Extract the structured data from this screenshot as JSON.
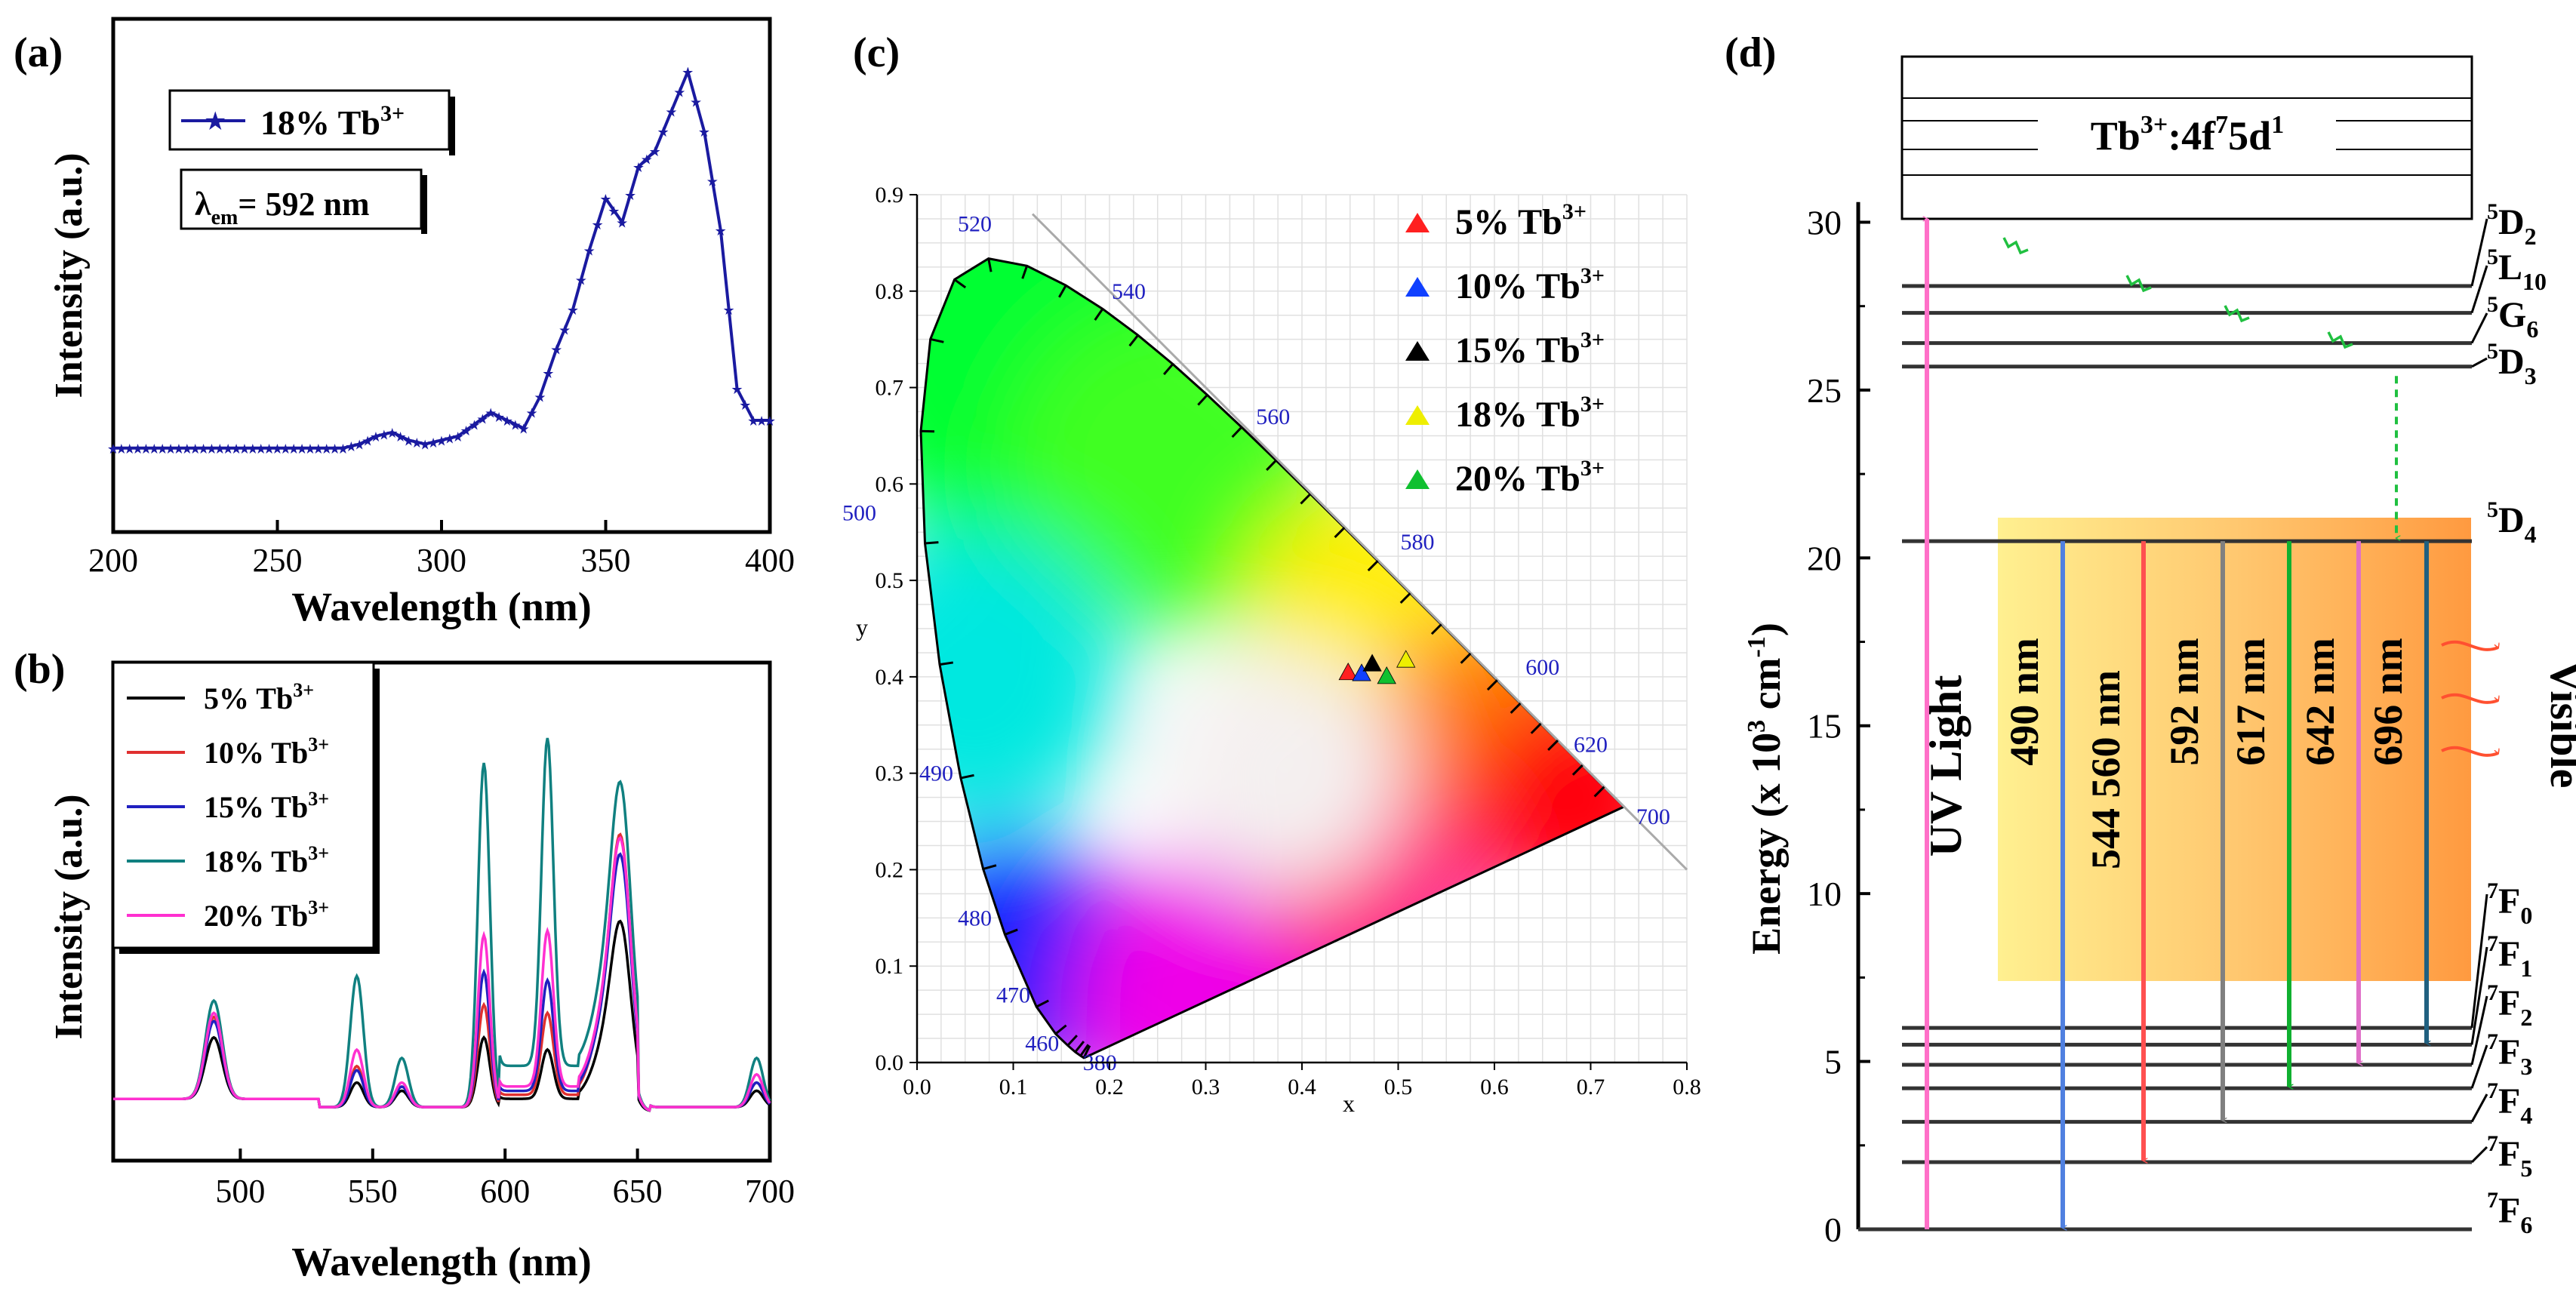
{
  "panel_labels": {
    "a": "(a)",
    "b": "(b)",
    "c": "(c)",
    "d": "(d)"
  },
  "colors": {
    "excitation": "#1a1aa0",
    "s5": "#000000",
    "s10": "#e03030",
    "s15": "#2020c0",
    "s18": "#108080",
    "s20": "#ff30d0",
    "cie_blue_label": "#2020c0",
    "arrow_uv": "#ff70c8",
    "arrow_490": "#5080e0",
    "arrow_544": "#ff5050",
    "arrow_592": "#808080",
    "arrow_617": "#10b030",
    "arrow_642": "#e070c8",
    "arrow_696": "#206080",
    "arrow_nr": "#20c040"
  },
  "chart_data": [
    {
      "id": "a",
      "type": "line",
      "title": "",
      "xlabel": "Wavelength (nm)",
      "ylabel": "Intensity (a.u.)",
      "xlim": [
        200,
        400
      ],
      "xticks": [
        "200",
        "250",
        "300",
        "350",
        "400"
      ],
      "legend": "18% Tb3+",
      "legend_parts": {
        "main": "18% Tb",
        "sup": "3+"
      },
      "annotation": {
        "lambda": "λ",
        "sub": "em",
        "rest": "= 592 nm"
      },
      "series": [
        {
          "name": "18% Tb3+",
          "x": [
            200,
            270,
            275,
            280,
            285,
            290,
            295,
            300,
            305,
            310,
            315,
            320,
            325,
            330,
            335,
            340,
            345,
            350,
            355,
            360,
            365,
            370,
            375,
            380,
            385,
            390,
            395,
            400
          ],
          "y": [
            0.05,
            0.05,
            0.06,
            0.08,
            0.09,
            0.07,
            0.06,
            0.07,
            0.08,
            0.11,
            0.14,
            0.12,
            0.1,
            0.18,
            0.3,
            0.4,
            0.55,
            0.68,
            0.62,
            0.76,
            0.8,
            0.9,
            1.0,
            0.85,
            0.6,
            0.2,
            0.12,
            0.12
          ]
        }
      ]
    },
    {
      "id": "b",
      "type": "line",
      "title": "",
      "xlabel": "Wavelength (nm)",
      "ylabel": "Intensity (a.u.)",
      "xlim": [
        452,
        700
      ],
      "xticks": [
        "500",
        "550",
        "600",
        "650",
        "700"
      ],
      "legend_parts": [
        {
          "main": "5% Tb",
          "sup": "3+"
        },
        {
          "main": "10% Tb",
          "sup": "3+"
        },
        {
          "main": "15% Tb",
          "sup": "3+"
        },
        {
          "main": "18% Tb",
          "sup": "3+"
        },
        {
          "main": "20% Tb",
          "sup": "3+"
        }
      ],
      "series": [
        {
          "name": "5% Tb3+",
          "peaks": [
            0.15,
            0.06,
            0.04,
            0.17,
            0.12,
            0.3,
            0.04
          ]
        },
        {
          "name": "10% Tb3+",
          "peaks": [
            0.2,
            0.1,
            0.05,
            0.25,
            0.2,
            0.44,
            0.06
          ]
        },
        {
          "name": "15% Tb3+",
          "peaks": [
            0.19,
            0.09,
            0.05,
            0.33,
            0.27,
            0.4,
            0.06
          ]
        },
        {
          "name": "18% Tb3+",
          "peaks": [
            0.24,
            0.32,
            0.12,
            0.84,
            0.8,
            0.48,
            0.12
          ]
        },
        {
          "name": "20% Tb3+",
          "peaks": [
            0.21,
            0.14,
            0.06,
            0.42,
            0.38,
            0.42,
            0.08
          ]
        }
      ],
      "peak_positions": [
        490,
        544,
        561,
        592,
        616,
        644,
        695
      ]
    },
    {
      "id": "c",
      "type": "scatter",
      "title": "",
      "xlabel": "x",
      "ylabel": "y",
      "xlim": [
        0,
        0.8
      ],
      "ylim": [
        0,
        0.9
      ],
      "xticks": [
        "0.0",
        "0.1",
        "0.2",
        "0.3",
        "0.4",
        "0.5",
        "0.6",
        "0.7",
        "0.8"
      ],
      "yticks": [
        "0.0",
        "0.1",
        "0.2",
        "0.3",
        "0.4",
        "0.5",
        "0.6",
        "0.7",
        "0.8",
        "0.9"
      ],
      "locus_labels": [
        "380",
        "460",
        "470",
        "480",
        "490",
        "500",
        "520",
        "540",
        "560",
        "580",
        "600",
        "620",
        "700"
      ],
      "legend_parts": [
        {
          "main": "5%   Tb",
          "sup": "3+"
        },
        {
          "main": "10% Tb",
          "sup": "3+"
        },
        {
          "main": "15% Tb",
          "sup": "3+"
        },
        {
          "main": "18% Tb",
          "sup": "3+"
        },
        {
          "main": "20% Tb",
          "sup": "3+"
        }
      ],
      "points": [
        {
          "name": "5% Tb3+",
          "x": 0.448,
          "y": 0.404
        },
        {
          "name": "10% Tb3+",
          "x": 0.462,
          "y": 0.403
        },
        {
          "name": "15% Tb3+",
          "x": 0.473,
          "y": 0.413
        },
        {
          "name": "18% Tb3+",
          "x": 0.508,
          "y": 0.417
        },
        {
          "name": "20% Tb3+",
          "x": 0.488,
          "y": 0.4
        }
      ]
    },
    {
      "id": "d",
      "type": "diagram",
      "title": "",
      "ylabel_parts": {
        "pre": "Energy (x 10",
        "sup": "3",
        "mid": " cm",
        "sup2": "-1",
        "post": ")"
      },
      "ylim": [
        0,
        31
      ],
      "yticks": [
        "0",
        "5",
        "10",
        "15",
        "20",
        "25",
        "30"
      ],
      "box_label": {
        "pre": "Tb",
        "sup": "3+",
        "post": ":4f",
        "sup2": "7",
        "post2": "5d",
        "sup3": "1"
      },
      "upper_levels": [
        {
          "name": "5D2",
          "pre": "5",
          "main": "D",
          "sub": "2",
          "energy": 28.1
        },
        {
          "name": "5L10",
          "pre": "5",
          "main": "L",
          "sub": "10",
          "energy": 27.3
        },
        {
          "name": "5G6",
          "pre": "5",
          "main": "G",
          "sub": "6",
          "energy": 26.4
        },
        {
          "name": "5D3",
          "pre": "5",
          "main": "D",
          "sub": "3",
          "energy": 25.7
        },
        {
          "name": "5D4",
          "pre": "5",
          "main": "D",
          "sub": "4",
          "energy": 20.5
        }
      ],
      "lower_levels": [
        {
          "name": "7F0",
          "pre": "7",
          "main": "F",
          "sub": "0",
          "energy": 6.0
        },
        {
          "name": "7F1",
          "pre": "7",
          "main": "F",
          "sub": "1",
          "energy": 5.5
        },
        {
          "name": "7F2",
          "pre": "7",
          "main": "F",
          "sub": "2",
          "energy": 4.9
        },
        {
          "name": "7F3",
          "pre": "7",
          "main": "F",
          "sub": "3",
          "energy": 4.2
        },
        {
          "name": "7F4",
          "pre": "7",
          "main": "F",
          "sub": "4",
          "energy": 3.2
        },
        {
          "name": "7F5",
          "pre": "7",
          "main": "F",
          "sub": "5",
          "energy": 2.0
        },
        {
          "name": "7F6",
          "pre": "7",
          "main": "F",
          "sub": "6",
          "energy": 0.0
        }
      ],
      "transitions": [
        {
          "label": "490 nm",
          "to": 0.0
        },
        {
          "label": "544 560 nm",
          "to": 2.0
        },
        {
          "label": "592 nm",
          "to": 3.2
        },
        {
          "label": "617 nm",
          "to": 4.2
        },
        {
          "label": "642 nm",
          "to": 4.9
        },
        {
          "label": "696 nm",
          "to": 5.5
        }
      ],
      "uv_label": "UV Light",
      "visible_label": "Visible"
    }
  ]
}
